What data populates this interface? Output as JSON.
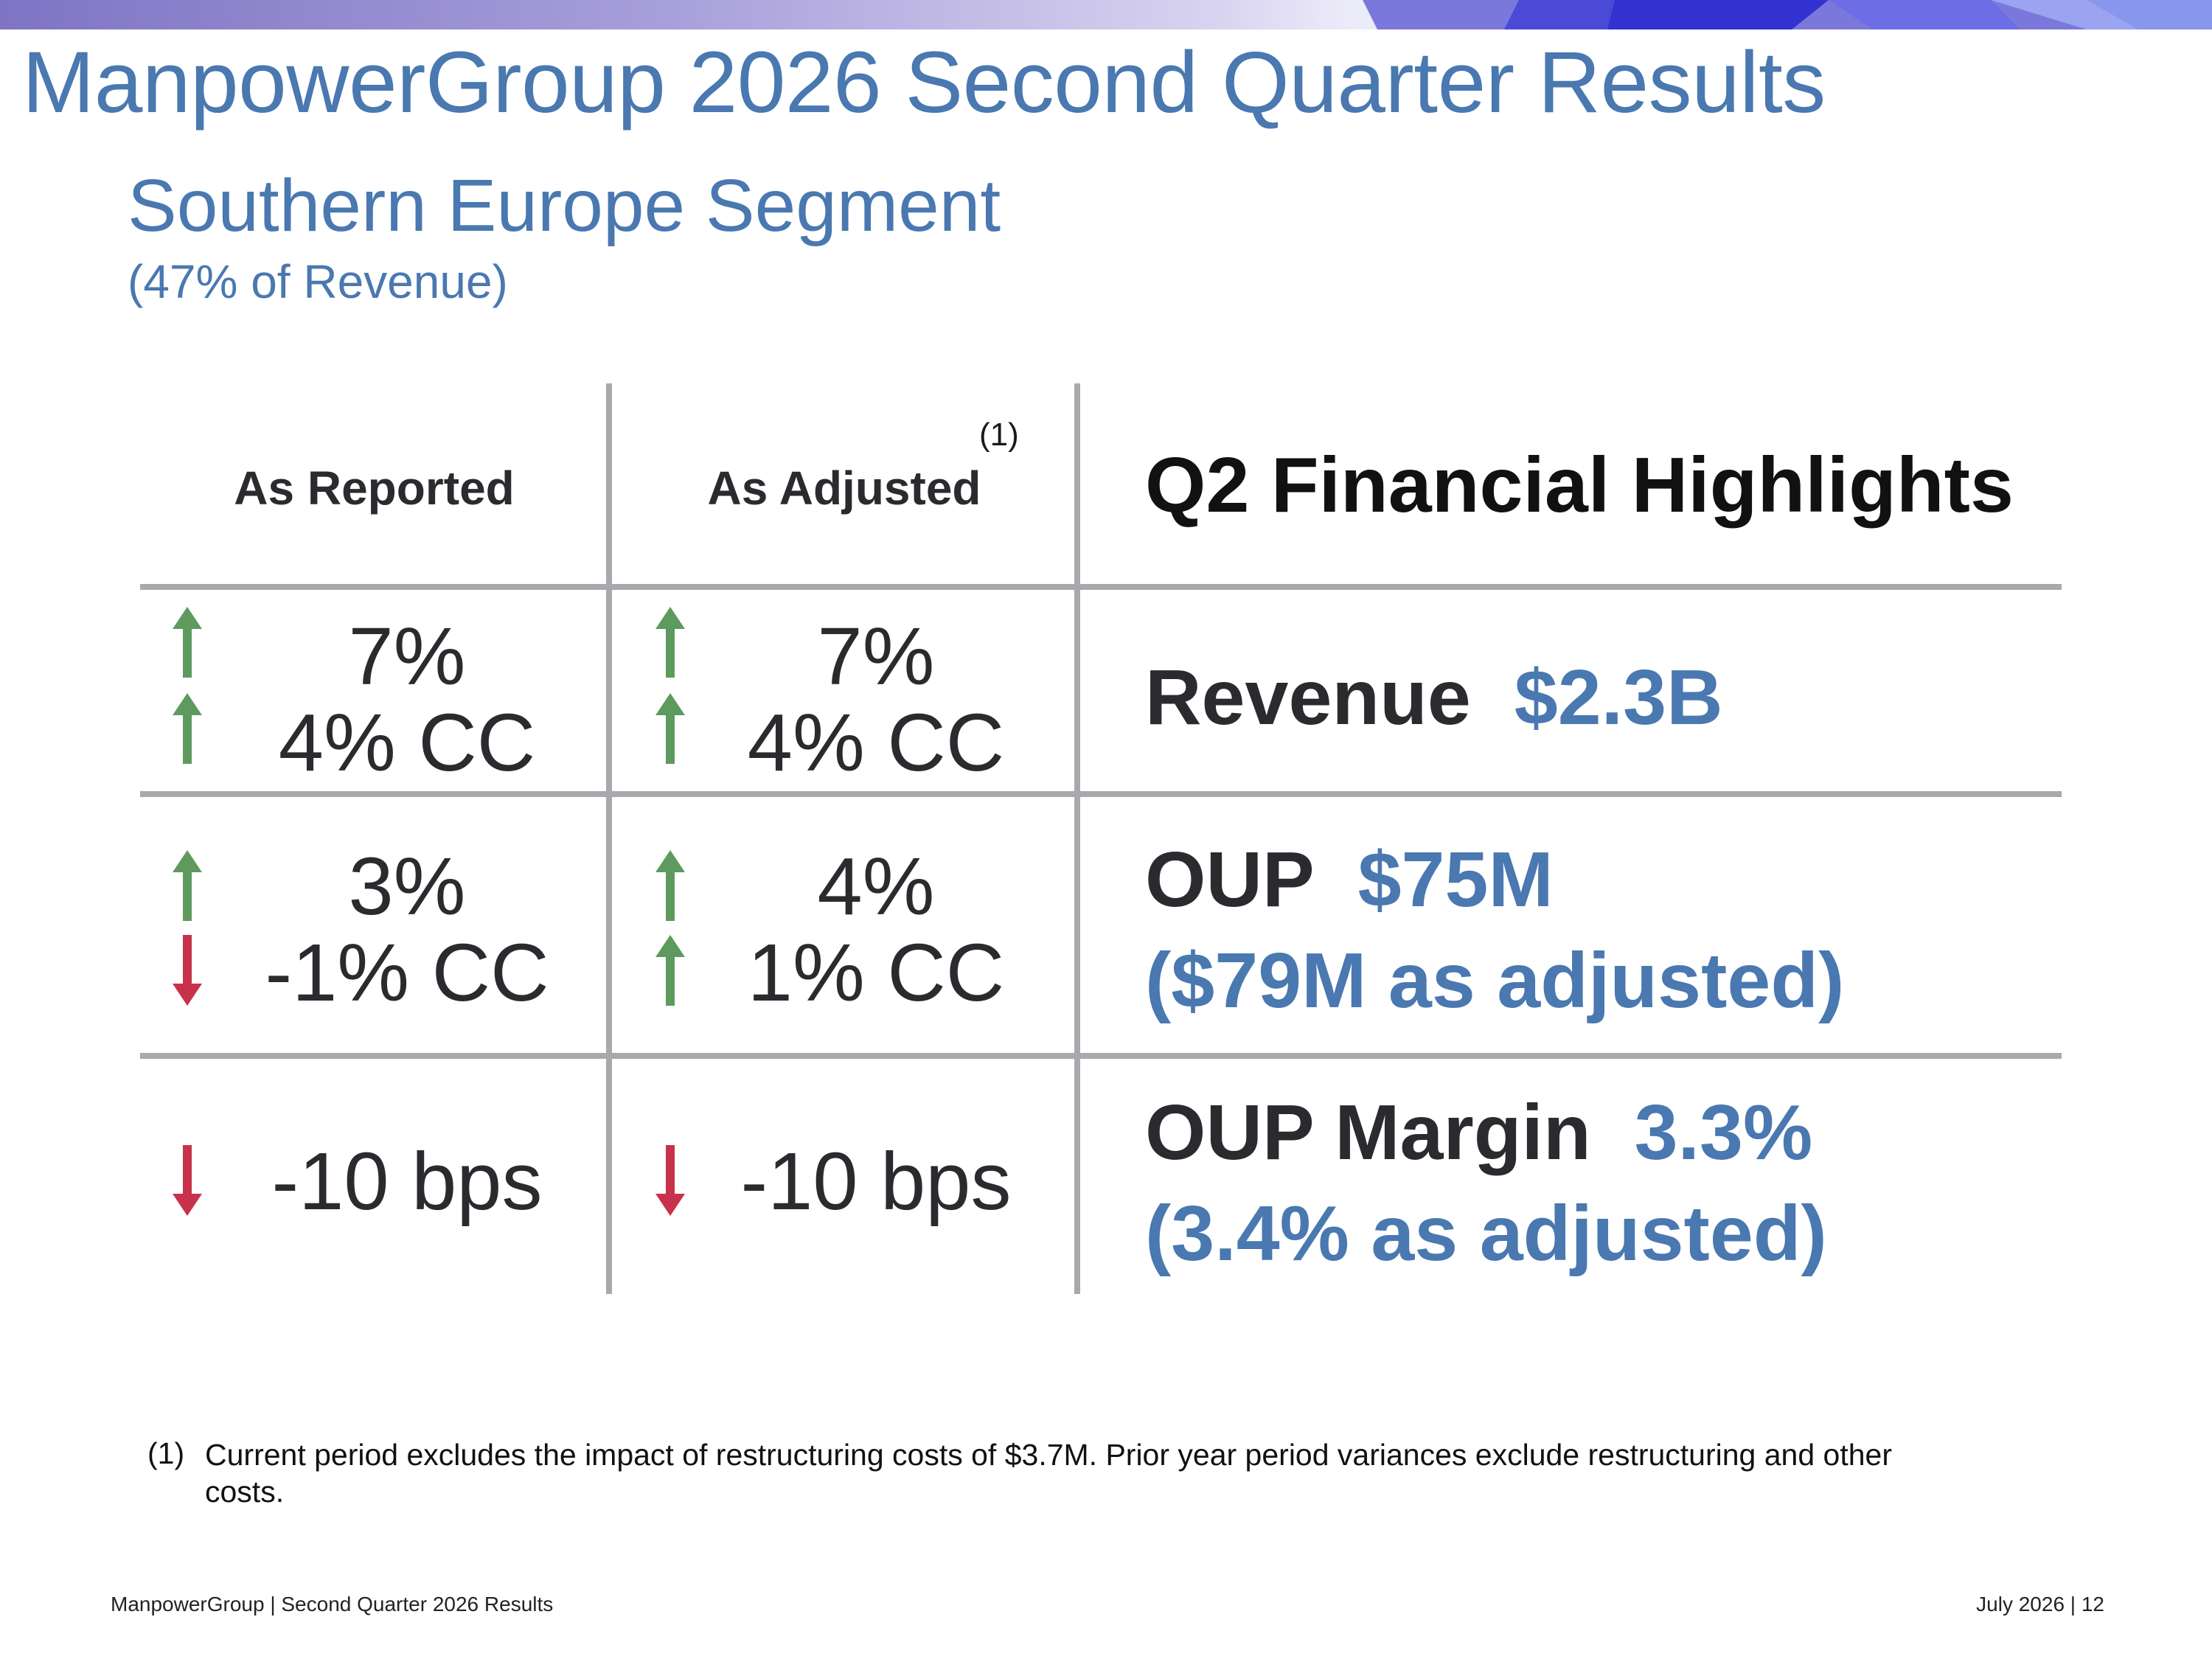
{
  "header": {
    "title": "ManpowerGroup 2026 Second Quarter Results",
    "segment_title": "Southern Europe Segment",
    "segment_note": "(47% of Revenue)"
  },
  "table": {
    "col_reported": "As Reported",
    "col_adjusted": "As Adjusted",
    "footnote_marker": "(1)",
    "highlights_title": "Q2 Financial Highlights",
    "rows": [
      {
        "reported": [
          {
            "text": "7%",
            "dir": "up"
          },
          {
            "text": "4% CC",
            "dir": "up"
          }
        ],
        "adjusted": [
          {
            "text": "7%",
            "dir": "up"
          },
          {
            "text": "4% CC",
            "dir": "up"
          }
        ],
        "label": "Revenue",
        "value": "$2.3B",
        "sub": ""
      },
      {
        "reported": [
          {
            "text": "3%",
            "dir": "up"
          },
          {
            "text": "-1% CC",
            "dir": "down"
          }
        ],
        "adjusted": [
          {
            "text": "4%",
            "dir": "up"
          },
          {
            "text": "1% CC",
            "dir": "up"
          }
        ],
        "label": "OUP",
        "value": "$75M",
        "sub": "($79M as adjusted)"
      },
      {
        "reported": [
          {
            "text": "-10 bps",
            "dir": "down"
          }
        ],
        "adjusted": [
          {
            "text": "-10 bps",
            "dir": "down"
          }
        ],
        "label": "OUP Margin",
        "value": "3.3%",
        "sub": "(3.4% as adjusted)"
      }
    ]
  },
  "footnote": {
    "marker": "(1)",
    "text": "Current period excludes the impact of restructuring costs of $3.7M. Prior year period variances exclude restructuring and other costs."
  },
  "footer": {
    "left": "ManpowerGroup  |  Second Quarter 2026 Results",
    "right": "July 2026   |   12"
  },
  "colors": {
    "accent_blue": "#4a78b0",
    "arrow_up": "#5e9a5e",
    "arrow_down": "#c8314a",
    "rule_gray": "#a8a8ad"
  }
}
